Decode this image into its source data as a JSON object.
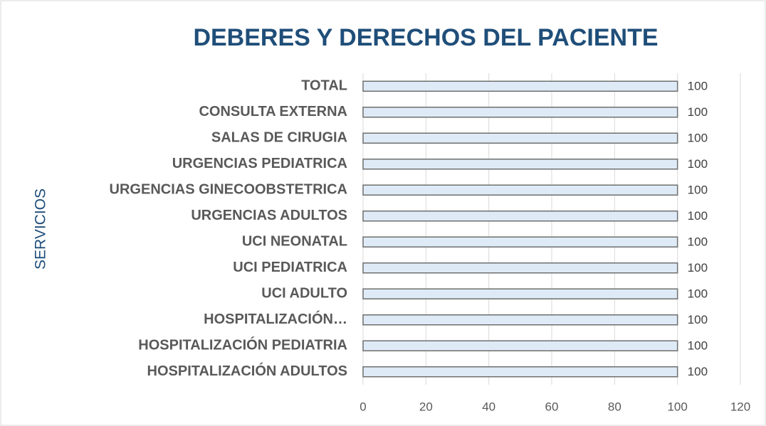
{
  "chart_data": {
    "type": "hbar",
    "title": "DEBERES Y DERECHOS DEL PACIENTE",
    "y_label": "SERVICIOS",
    "categories": [
      "TOTAL",
      "CONSULTA EXTERNA",
      "SALAS DE CIRUGIA",
      "URGENCIAS PEDIATRICA",
      "URGENCIAS GINECOOBSTETRICA",
      "URGENCIAS ADULTOS",
      "UCI NEONATAL",
      "UCI PEDIATRICA",
      "UCI ADULTO",
      "HOSPITALIZACIÓN…",
      "HOSPITALIZACIÓN PEDIATRIA",
      "HOSPITALIZACIÓN ADULTOS"
    ],
    "values": [
      100,
      100,
      100,
      100,
      100,
      100,
      100,
      100,
      100,
      100,
      100,
      100
    ],
    "color": "#deebf7",
    "xlim": [
      0,
      120
    ],
    "xticks": [
      0,
      20,
      40,
      60,
      80,
      100,
      120
    ],
    "grid": true
  }
}
